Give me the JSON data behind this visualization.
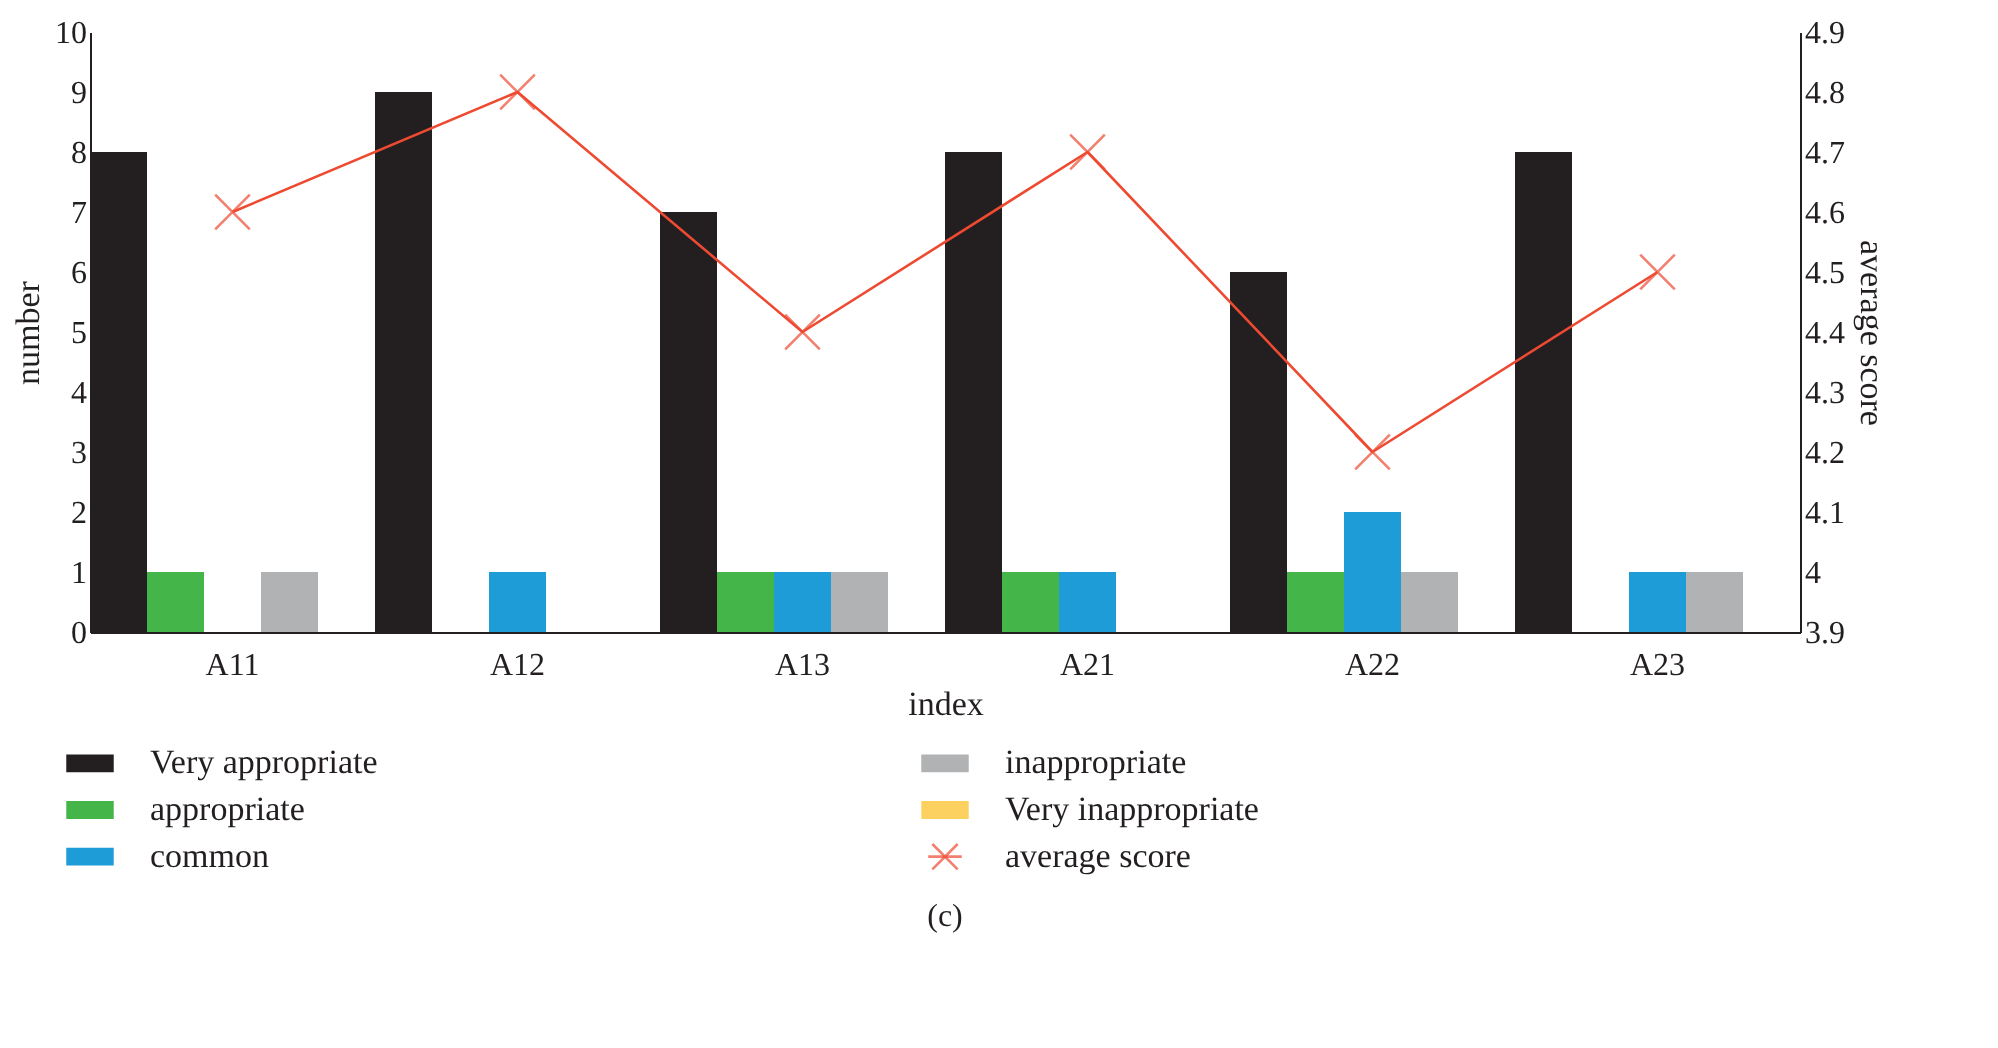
{
  "chart_data": {
    "type": "bar",
    "xlabel": "index",
    "ylabel": "number",
    "y2label": "average score",
    "categories": [
      "A11",
      "A12",
      "A13",
      "A21",
      "A22",
      "A23"
    ],
    "series": [
      {
        "name": "Very appropriate",
        "color": "#231f20",
        "values": [
          8,
          9,
          7,
          8,
          6,
          8
        ]
      },
      {
        "name": "appropriate",
        "color": "#43b549",
        "values": [
          1,
          0,
          1,
          1,
          1,
          0
        ]
      },
      {
        "name": "common",
        "color": "#1e9cd7",
        "values": [
          0,
          1,
          1,
          1,
          2,
          1
        ]
      },
      {
        "name": "inappropriate",
        "color": "#b1b2b4",
        "values": [
          1,
          0,
          1,
          0,
          1,
          1
        ]
      },
      {
        "name": "Very inappropriate",
        "color": "#fdd160",
        "values": [
          0,
          0,
          0,
          0,
          0,
          0
        ]
      },
      {
        "name": "average score",
        "type": "line",
        "axis": "y2",
        "color": "#ee4a32",
        "marker": "cross",
        "line_style": "solid",
        "values": [
          4.6,
          4.8,
          4.4,
          4.7,
          4.2,
          4.5
        ]
      }
    ],
    "ylim": [
      0,
      10
    ],
    "yticks": [
      0,
      1,
      2,
      3,
      4,
      5,
      6,
      7,
      8,
      9,
      10
    ],
    "y2lim": [
      3.9,
      4.9
    ],
    "y2ticks": [
      3.9,
      4,
      4.1,
      4.2,
      4.3,
      4.4,
      4.5,
      4.6,
      4.7,
      4.8,
      4.9
    ],
    "grid": false,
    "legend": "bottom",
    "annotations": [
      "(c)"
    ]
  }
}
